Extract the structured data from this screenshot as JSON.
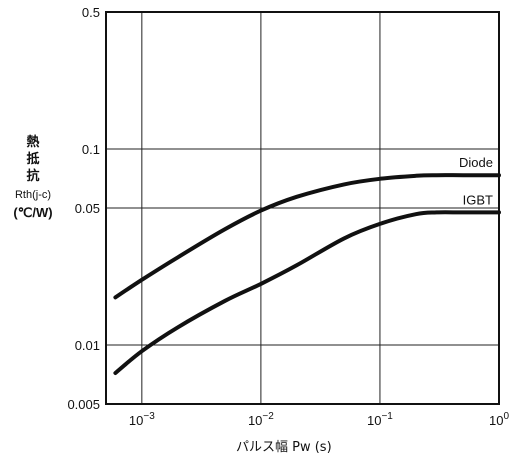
{
  "chart_data": {
    "type": "line",
    "xscale": "log",
    "yscale": "log",
    "xlim": [
      0.0005,
      1
    ],
    "ylim": [
      0.005,
      0.5
    ],
    "grid": true,
    "x_ticks": [
      {
        "value": 0.001,
        "base": "10",
        "exp": "−3"
      },
      {
        "value": 0.01,
        "base": "10",
        "exp": "−2"
      },
      {
        "value": 0.1,
        "base": "10",
        "exp": "−1"
      },
      {
        "value": 1,
        "base": "10",
        "exp": "0"
      }
    ],
    "y_ticks": [
      {
        "value": 0.5,
        "label": "0.5"
      },
      {
        "value": 0.1,
        "label": "0.1"
      },
      {
        "value": 0.05,
        "label": "0.05"
      },
      {
        "value": 0.01,
        "label": "0.01"
      },
      {
        "value": 0.005,
        "label": "0.005"
      }
    ],
    "ylabel": {
      "kanji": [
        "熱",
        "抵",
        "抗"
      ],
      "symbol": "Rth(j-c)",
      "unit": "(℃/W)"
    },
    "xlabel": "パルス幅 Pw (s)",
    "series": [
      {
        "name": "Diode",
        "x": [
          0.0006,
          0.001,
          0.002,
          0.005,
          0.01,
          0.02,
          0.05,
          0.1,
          0.2,
          0.3,
          0.5,
          1
        ],
        "y": [
          0.0175,
          0.0215,
          0.028,
          0.039,
          0.0485,
          0.057,
          0.066,
          0.0705,
          0.073,
          0.0735,
          0.0735,
          0.0735
        ]
      },
      {
        "name": "IGBT",
        "x": [
          0.0006,
          0.001,
          0.002,
          0.005,
          0.01,
          0.02,
          0.05,
          0.1,
          0.2,
          0.3,
          0.5,
          1
        ],
        "y": [
          0.0072,
          0.0093,
          0.0123,
          0.0168,
          0.0205,
          0.0255,
          0.035,
          0.0415,
          0.0465,
          0.0475,
          0.0475,
          0.0475
        ]
      }
    ]
  }
}
